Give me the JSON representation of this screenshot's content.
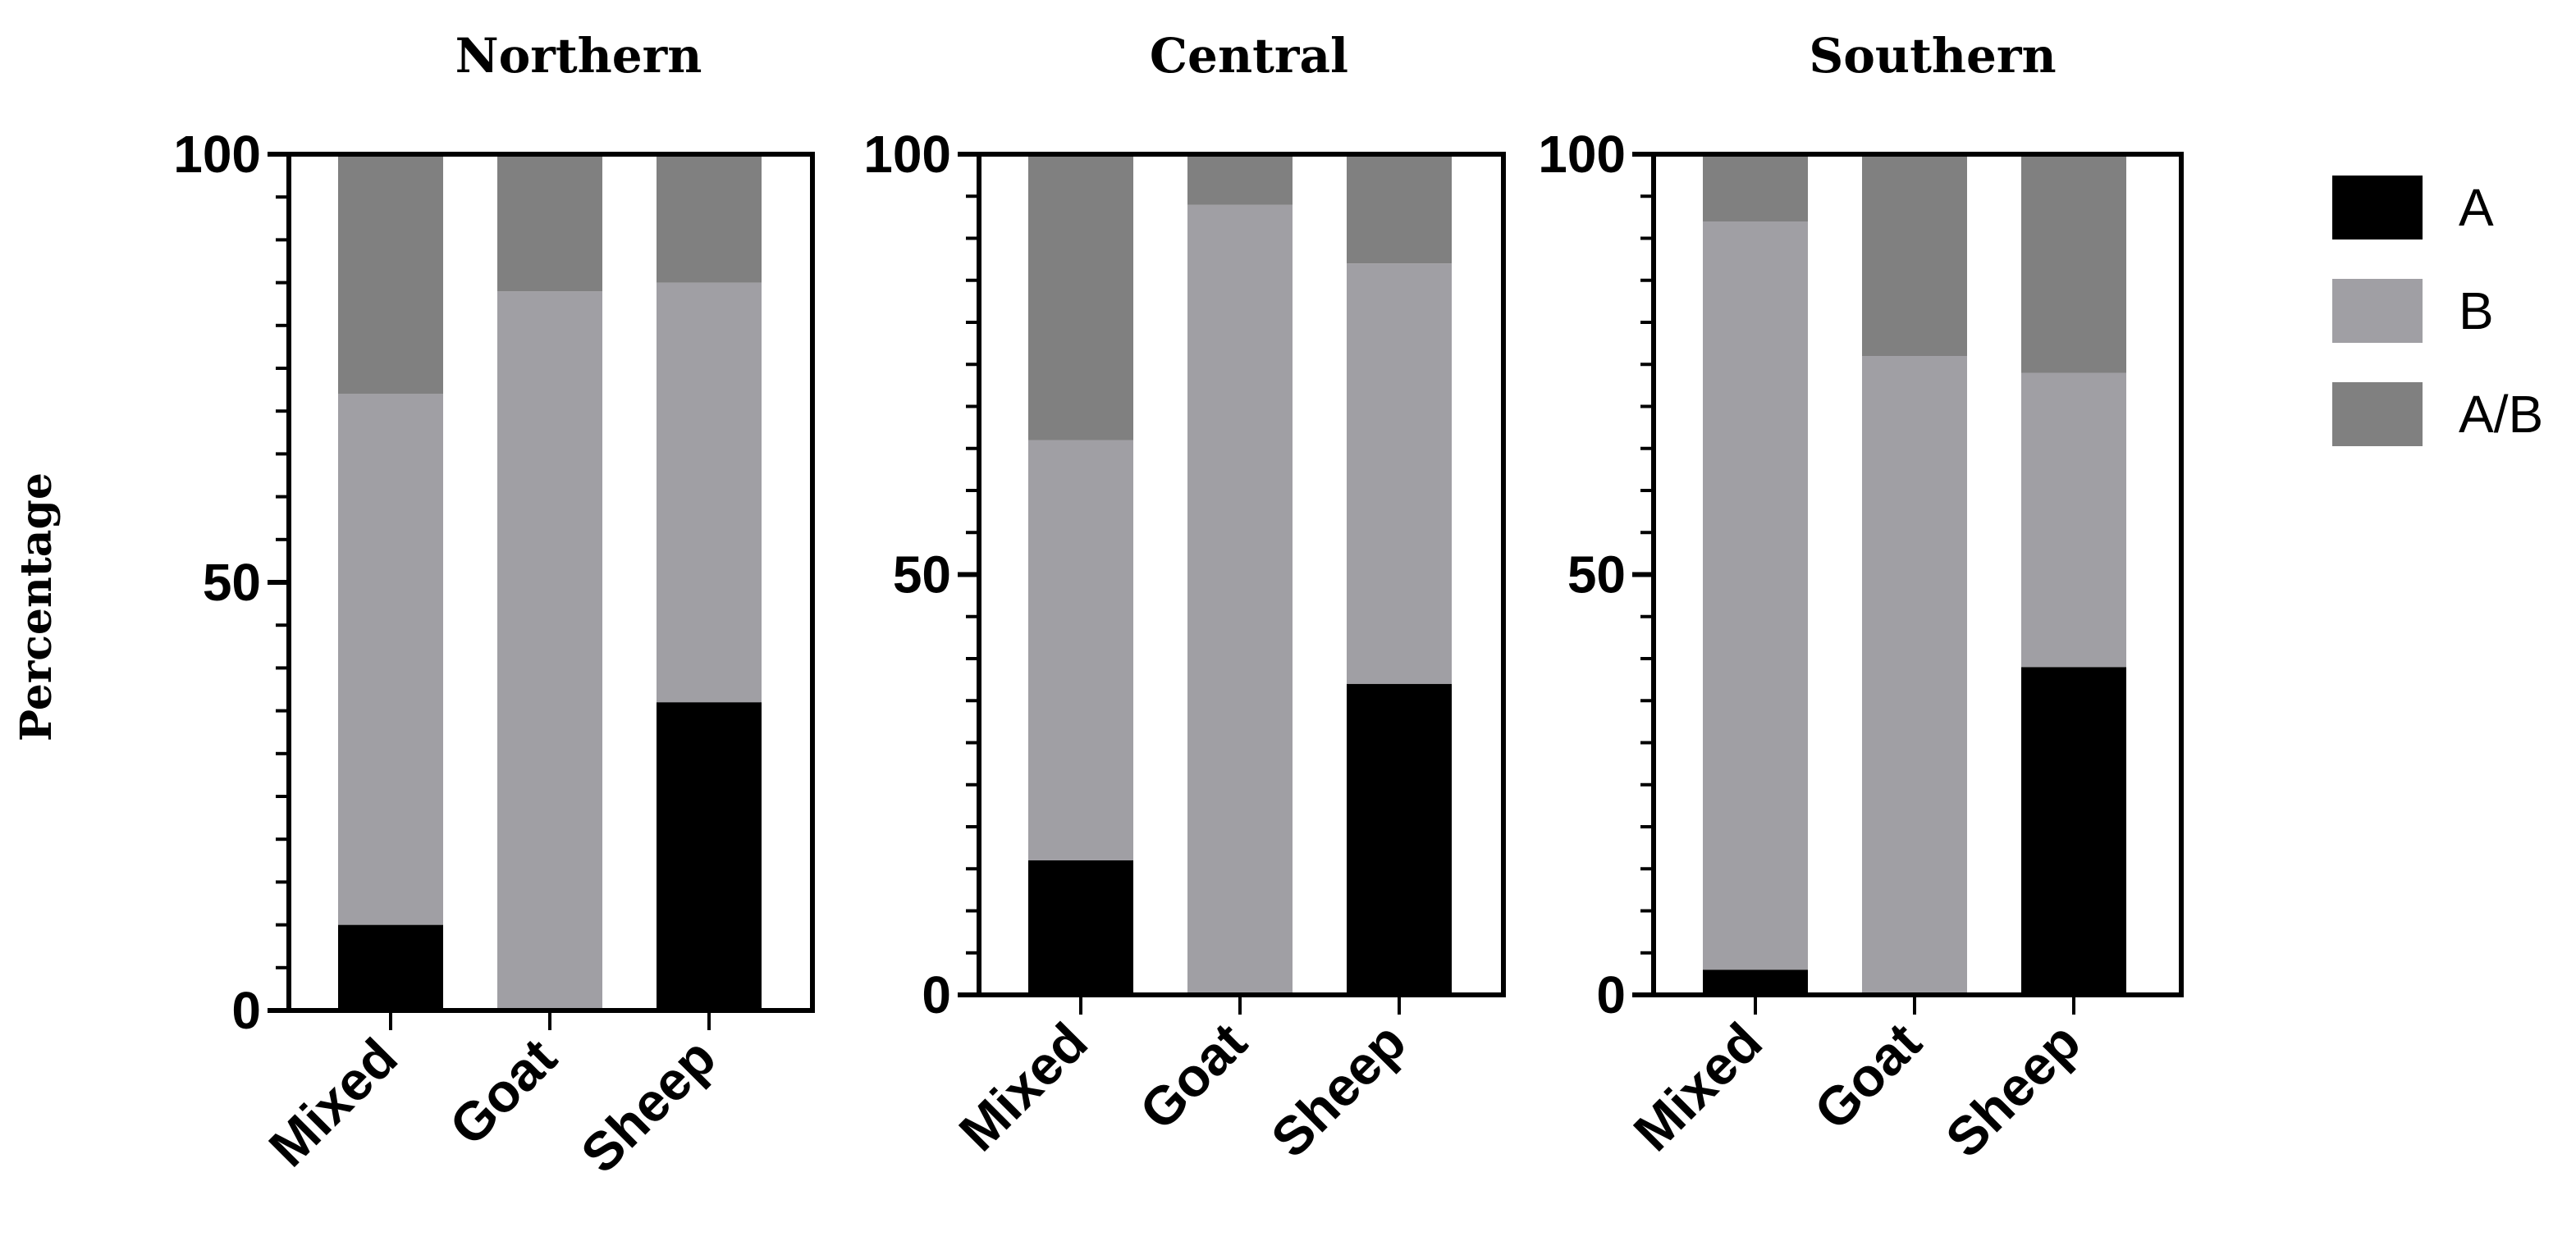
{
  "chart_data": {
    "type": "bar",
    "stacked": true,
    "ylabel": "Percentage",
    "ylim": [
      0,
      100
    ],
    "yticks": [
      0,
      50,
      100
    ],
    "categories": [
      "Mixed",
      "Goat",
      "Sheep"
    ],
    "legend": {
      "placement": "right",
      "entries": [
        {
          "name": "A",
          "color": "#000000"
        },
        {
          "name": "B",
          "color": "#a09fa4"
        },
        {
          "name": "A/B",
          "color": "#808080"
        }
      ]
    },
    "panels": [
      {
        "title": "Northern",
        "series": [
          {
            "name": "A",
            "values": [
              10,
              0,
              36
            ]
          },
          {
            "name": "B",
            "values": [
              62,
              84,
              49
            ]
          },
          {
            "name": "A/B",
            "values": [
              28,
              16,
              15
            ]
          }
        ]
      },
      {
        "title": "Central",
        "series": [
          {
            "name": "A",
            "values": [
              16,
              0,
              37
            ]
          },
          {
            "name": "B",
            "values": [
              50,
              94,
              50
            ]
          },
          {
            "name": "A/B",
            "values": [
              34,
              6,
              13
            ]
          }
        ]
      },
      {
        "title": "Southern",
        "series": [
          {
            "name": "A",
            "values": [
              3,
              0,
              39
            ]
          },
          {
            "name": "B",
            "values": [
              89,
              76,
              35
            ]
          },
          {
            "name": "A/B",
            "values": [
              8,
              24,
              26
            ]
          }
        ]
      }
    ]
  }
}
